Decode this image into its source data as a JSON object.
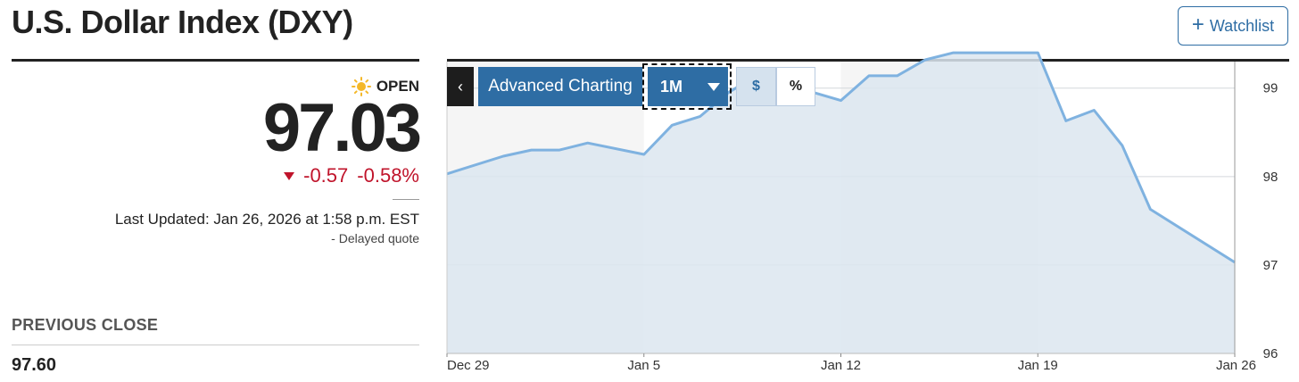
{
  "header": {
    "title": "U.S. Dollar Index (DXY)",
    "watchlist_label": "Watchlist",
    "watchlist_icon": "plus-icon"
  },
  "quote": {
    "status_icon": "sun-icon",
    "status": "OPEN",
    "price": "97.03",
    "change": "-0.57",
    "change_percent": "-0.58%",
    "change_direction_icon": "down-triangle-icon",
    "change_color": "#c0142b",
    "last_updated": "Last Updated: Jan 26, 2026 at 1:58 p.m. EST",
    "delayed": "-  Delayed quote"
  },
  "previous_close": {
    "label": "PREVIOUS CLOSE",
    "value": "97.60"
  },
  "chart_controls": {
    "collapse_icon": "chevron-left-icon",
    "advanced_label": "Advanced Charting",
    "range_label": "1M",
    "range_icon": "caret-down-icon",
    "dollar_label": "$",
    "percent_label": "%",
    "accent_color": "#2e6da4"
  },
  "chart_data": {
    "type": "area",
    "x_ticks": [
      "Dec 29",
      "Jan 5",
      "Jan 12",
      "Jan 19",
      "Jan 26"
    ],
    "y_ticks": [
      "96",
      "97",
      "98",
      "99"
    ],
    "ylim": [
      96,
      99.3
    ],
    "grid": true,
    "line_color": "#7fb2e0",
    "fill_color": "#dce6f0",
    "series": [
      {
        "values": [
          {
            "x": 0,
            "y": 98.03
          },
          {
            "x": 2,
            "y": 98.23
          },
          {
            "x": 3,
            "y": 98.3
          },
          {
            "x": 4,
            "y": 98.3
          },
          {
            "x": 5,
            "y": 98.38
          },
          {
            "x": 7,
            "y": 98.25
          },
          {
            "x": 8,
            "y": 98.58
          },
          {
            "x": 9,
            "y": 98.68
          },
          {
            "x": 10,
            "y": 98.95
          },
          {
            "x": 11,
            "y": 99.14
          },
          {
            "x": 14,
            "y": 98.86
          },
          {
            "x": 15,
            "y": 99.14
          },
          {
            "x": 16,
            "y": 99.14
          },
          {
            "x": 17,
            "y": 99.32
          },
          {
            "x": 18,
            "y": 99.4
          },
          {
            "x": 21,
            "y": 99.4
          },
          {
            "x": 22,
            "y": 98.63
          },
          {
            "x": 23,
            "y": 98.75
          },
          {
            "x": 24,
            "y": 98.35
          },
          {
            "x": 25,
            "y": 97.63
          },
          {
            "x": 28,
            "y": 97.03
          }
        ]
      }
    ]
  }
}
